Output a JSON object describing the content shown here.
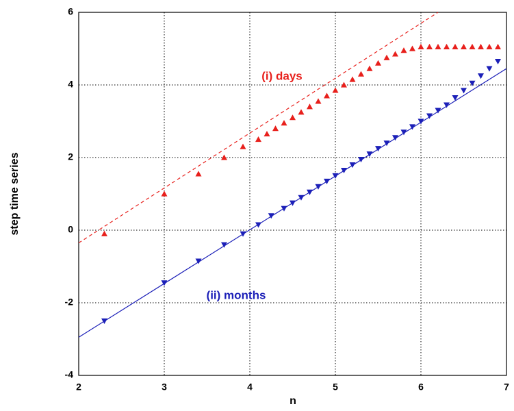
{
  "chart_data": {
    "type": "scatter",
    "x_label": "n",
    "y_label": "step time series",
    "xlim": [
      2,
      7
    ],
    "xticks": [
      2,
      3,
      4,
      5,
      6,
      7
    ],
    "ylim": [
      -4,
      6
    ],
    "yticks": [
      -4,
      -2,
      0,
      2,
      4,
      6
    ],
    "grid": true,
    "series": [
      {
        "name": "(i) days",
        "color": "#e8201c",
        "marker": "triangle-up",
        "x": [
          2.3,
          3,
          3.4,
          3.7,
          3.92,
          4.1,
          4.2,
          4.3,
          4.4,
          4.5,
          4.6,
          4.7,
          4.8,
          4.9,
          5.0,
          5.1,
          5.2,
          5.3,
          5.4,
          5.5,
          5.6,
          5.7,
          5.8,
          5.9,
          6.0,
          6.1,
          6.2,
          6.3,
          6.4,
          6.5,
          6.6,
          6.7,
          6.8,
          6.9
        ],
        "values": [
          -0.1,
          1.0,
          1.55,
          2.0,
          2.3,
          2.5,
          2.65,
          2.8,
          2.95,
          3.1,
          3.25,
          3.4,
          3.55,
          3.7,
          3.85,
          4.0,
          4.15,
          4.3,
          4.45,
          4.6,
          4.75,
          4.85,
          4.95,
          5.0,
          5.05,
          5.05,
          5.05,
          5.05,
          5.05,
          5.05,
          5.05,
          5.05,
          5.05,
          5.05
        ]
      },
      {
        "name": "(ii) months",
        "color": "#1c20b8",
        "marker": "triangle-down",
        "x": [
          2.3,
          3,
          3.4,
          3.7,
          3.92,
          4.1,
          4.25,
          4.4,
          4.5,
          4.6,
          4.7,
          4.8,
          4.9,
          5.0,
          5.1,
          5.2,
          5.3,
          5.4,
          5.5,
          5.6,
          5.7,
          5.8,
          5.9,
          6.0,
          6.1,
          6.2,
          6.3,
          6.4,
          6.5,
          6.6,
          6.7,
          6.8,
          6.9
        ],
        "values": [
          -2.5,
          -1.45,
          -0.85,
          -0.4,
          -0.1,
          0.15,
          0.4,
          0.6,
          0.75,
          0.9,
          1.05,
          1.2,
          1.35,
          1.5,
          1.65,
          1.8,
          1.95,
          2.1,
          2.25,
          2.4,
          2.55,
          2.7,
          2.85,
          3.0,
          3.15,
          3.3,
          3.45,
          3.65,
          3.85,
          4.05,
          4.25,
          4.45,
          4.65
        ]
      }
    ],
    "fits": [
      {
        "color": "#e8201c",
        "dashed": true,
        "x": [
          2,
          6.2
        ],
        "values": [
          -0.35,
          6.0
        ]
      },
      {
        "color": "#1c20b8",
        "dashed": false,
        "x": [
          2,
          7
        ],
        "values": [
          -2.95,
          4.45
        ]
      }
    ]
  }
}
